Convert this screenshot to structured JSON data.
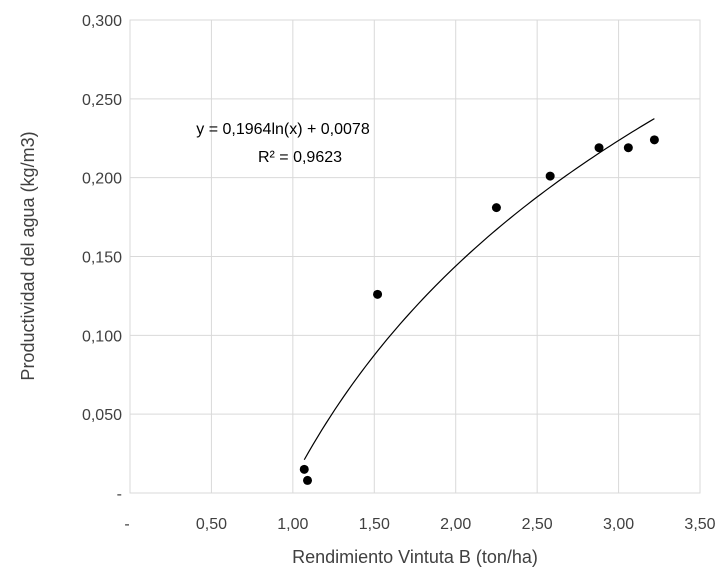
{
  "chart_data": {
    "type": "scatter",
    "xlabel": "Rendimiento Vintuta B (ton/ha)",
    "ylabel": "Productividad del agua (kg/m3)",
    "xlim": [
      0,
      3.5
    ],
    "ylim": [
      0,
      0.3
    ],
    "x_ticks": [
      0,
      0.5,
      1.0,
      1.5,
      2.0,
      2.5,
      3.0,
      3.5
    ],
    "x_tick_labels": [
      "-",
      "0,50",
      "1,00",
      "1,50",
      "2,00",
      "2,50",
      "3,00",
      "3,50"
    ],
    "y_ticks": [
      0,
      0.05,
      0.1,
      0.15,
      0.2,
      0.25,
      0.3
    ],
    "y_tick_labels": [
      "-",
      "0,050",
      "0,100",
      "0,150",
      "0,200",
      "0,250",
      "0,300"
    ],
    "grid": true,
    "series": [
      {
        "x": [
          1.07,
          1.09,
          1.52,
          2.25,
          2.58,
          2.88,
          3.06,
          3.22
        ],
        "y": [
          0.015,
          0.008,
          0.126,
          0.181,
          0.201,
          0.219,
          0.219,
          0.224
        ],
        "color": "#000000"
      }
    ],
    "trendline": {
      "type": "logarithmic",
      "a": 0.1964,
      "b": 0.0078,
      "x_range": [
        1.07,
        3.22
      ],
      "color": "#000000"
    },
    "annotations": {
      "equation": "y = 0,1964ln(x) + 0,0078",
      "r_squared": "R² = 0,9623"
    }
  }
}
